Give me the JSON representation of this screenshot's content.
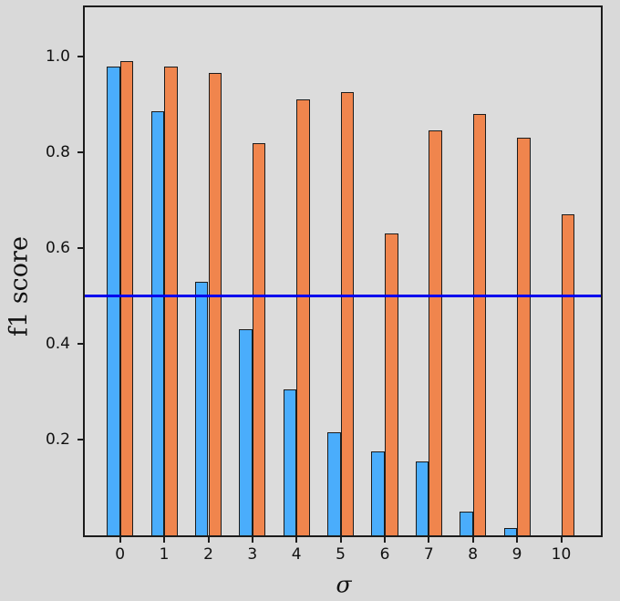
{
  "chart_data": {
    "type": "bar",
    "title": "",
    "xlabel": "σ",
    "ylabel": "f1 score",
    "x": [
      0,
      1,
      2,
      3,
      4,
      5,
      6,
      7,
      8,
      9,
      10
    ],
    "series": [
      {
        "name": "blue",
        "color": "#4aadfc",
        "values": [
          0.98,
          0.885,
          0.53,
          0.43,
          0.305,
          0.215,
          0.175,
          0.155,
          0.05,
          0.015,
          0
        ]
      },
      {
        "name": "orange",
        "color": "#f0854d",
        "values": [
          0.99,
          0.98,
          0.965,
          0.82,
          0.91,
          0.925,
          0.63,
          0.845,
          0.88,
          0.83,
          0.67
        ]
      }
    ],
    "bar_width": 0.3,
    "bar_edge_color": "#1c1c1c",
    "hline": {
      "y": 0.5,
      "color": "#0202ee",
      "linewidth": 3
    },
    "xlim": [
      -0.8,
      10.9
    ],
    "ylim": [
      0,
      1.103
    ],
    "xticks": {
      "values": [
        0,
        1,
        2,
        3,
        4,
        5,
        6,
        7,
        8,
        9,
        10
      ],
      "labels": [
        "0",
        "1",
        "2",
        "3",
        "4",
        "5",
        "6",
        "7",
        "8",
        "9",
        "10"
      ]
    },
    "yticks": {
      "values": [
        0.2,
        0.4,
        0.6,
        0.8,
        1.0
      ],
      "labels": [
        "0.2",
        "0.4",
        "0.6",
        "0.8",
        "1.0"
      ]
    },
    "grid": false,
    "legend": null,
    "colors": {
      "figure_background": "#d9d9d9",
      "axes_background": "#dcdcdc",
      "spine": "#1c1c1c",
      "tick": "#1c1c1c",
      "text": "#111111"
    }
  }
}
